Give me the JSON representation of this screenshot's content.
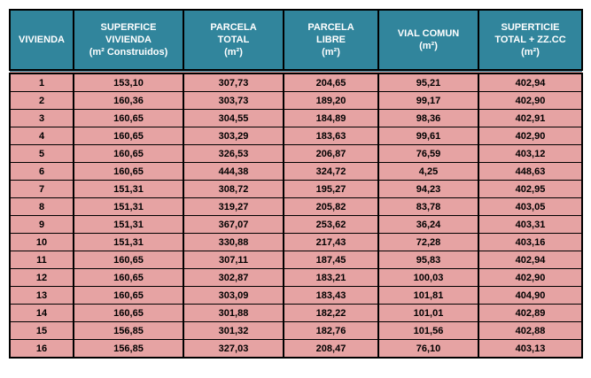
{
  "headers": [
    [
      "VIVIENDA"
    ],
    [
      "SUPERFICE",
      "VIVIENDA",
      "(m² Construidos)"
    ],
    [
      "PARCELA",
      "TOTAL",
      "(m²)"
    ],
    [
      "PARCELA",
      "LIBRE",
      "(m²)"
    ],
    [
      "VIAL COMUN",
      "(m²)"
    ],
    [
      "SUPERTICIE",
      "TOTAL + ZZ.CC",
      "(m²)"
    ]
  ],
  "rows": [
    [
      "1",
      "153,10",
      "307,73",
      "204,65",
      "95,21",
      "402,94"
    ],
    [
      "2",
      "160,36",
      "303,73",
      "189,20",
      "99,17",
      "402,90"
    ],
    [
      "3",
      "160,65",
      "304,55",
      "184,89",
      "98,36",
      "402,91"
    ],
    [
      "4",
      "160,65",
      "303,29",
      "183,63",
      "99,61",
      "402,90"
    ],
    [
      "5",
      "160,65",
      "326,53",
      "206,87",
      "76,59",
      "403,12"
    ],
    [
      "6",
      "160,65",
      "444,38",
      "324,72",
      "4,25",
      "448,63"
    ],
    [
      "7",
      "151,31",
      "308,72",
      "195,27",
      "94,23",
      "402,95"
    ],
    [
      "8",
      "151,31",
      "319,27",
      "205,82",
      "83,78",
      "403,05"
    ],
    [
      "9",
      "151,31",
      "367,07",
      "253,62",
      "36,24",
      "403,31"
    ],
    [
      "10",
      "151,31",
      "330,88",
      "217,43",
      "72,28",
      "403,16"
    ],
    [
      "11",
      "160,65",
      "307,11",
      "187,45",
      "95,83",
      "402,94"
    ],
    [
      "12",
      "160,65",
      "302,87",
      "183,21",
      "100,03",
      "402,90"
    ],
    [
      "13",
      "160,65",
      "303,09",
      "183,43",
      "101,81",
      "404,90"
    ],
    [
      "14",
      "160,65",
      "301,88",
      "182,22",
      "101,01",
      "402,89"
    ],
    [
      "15",
      "156,85",
      "301,32",
      "182,76",
      "101,56",
      "402,88"
    ],
    [
      "16",
      "156,85",
      "327,03",
      "208,47",
      "76,10",
      "403,13"
    ]
  ]
}
